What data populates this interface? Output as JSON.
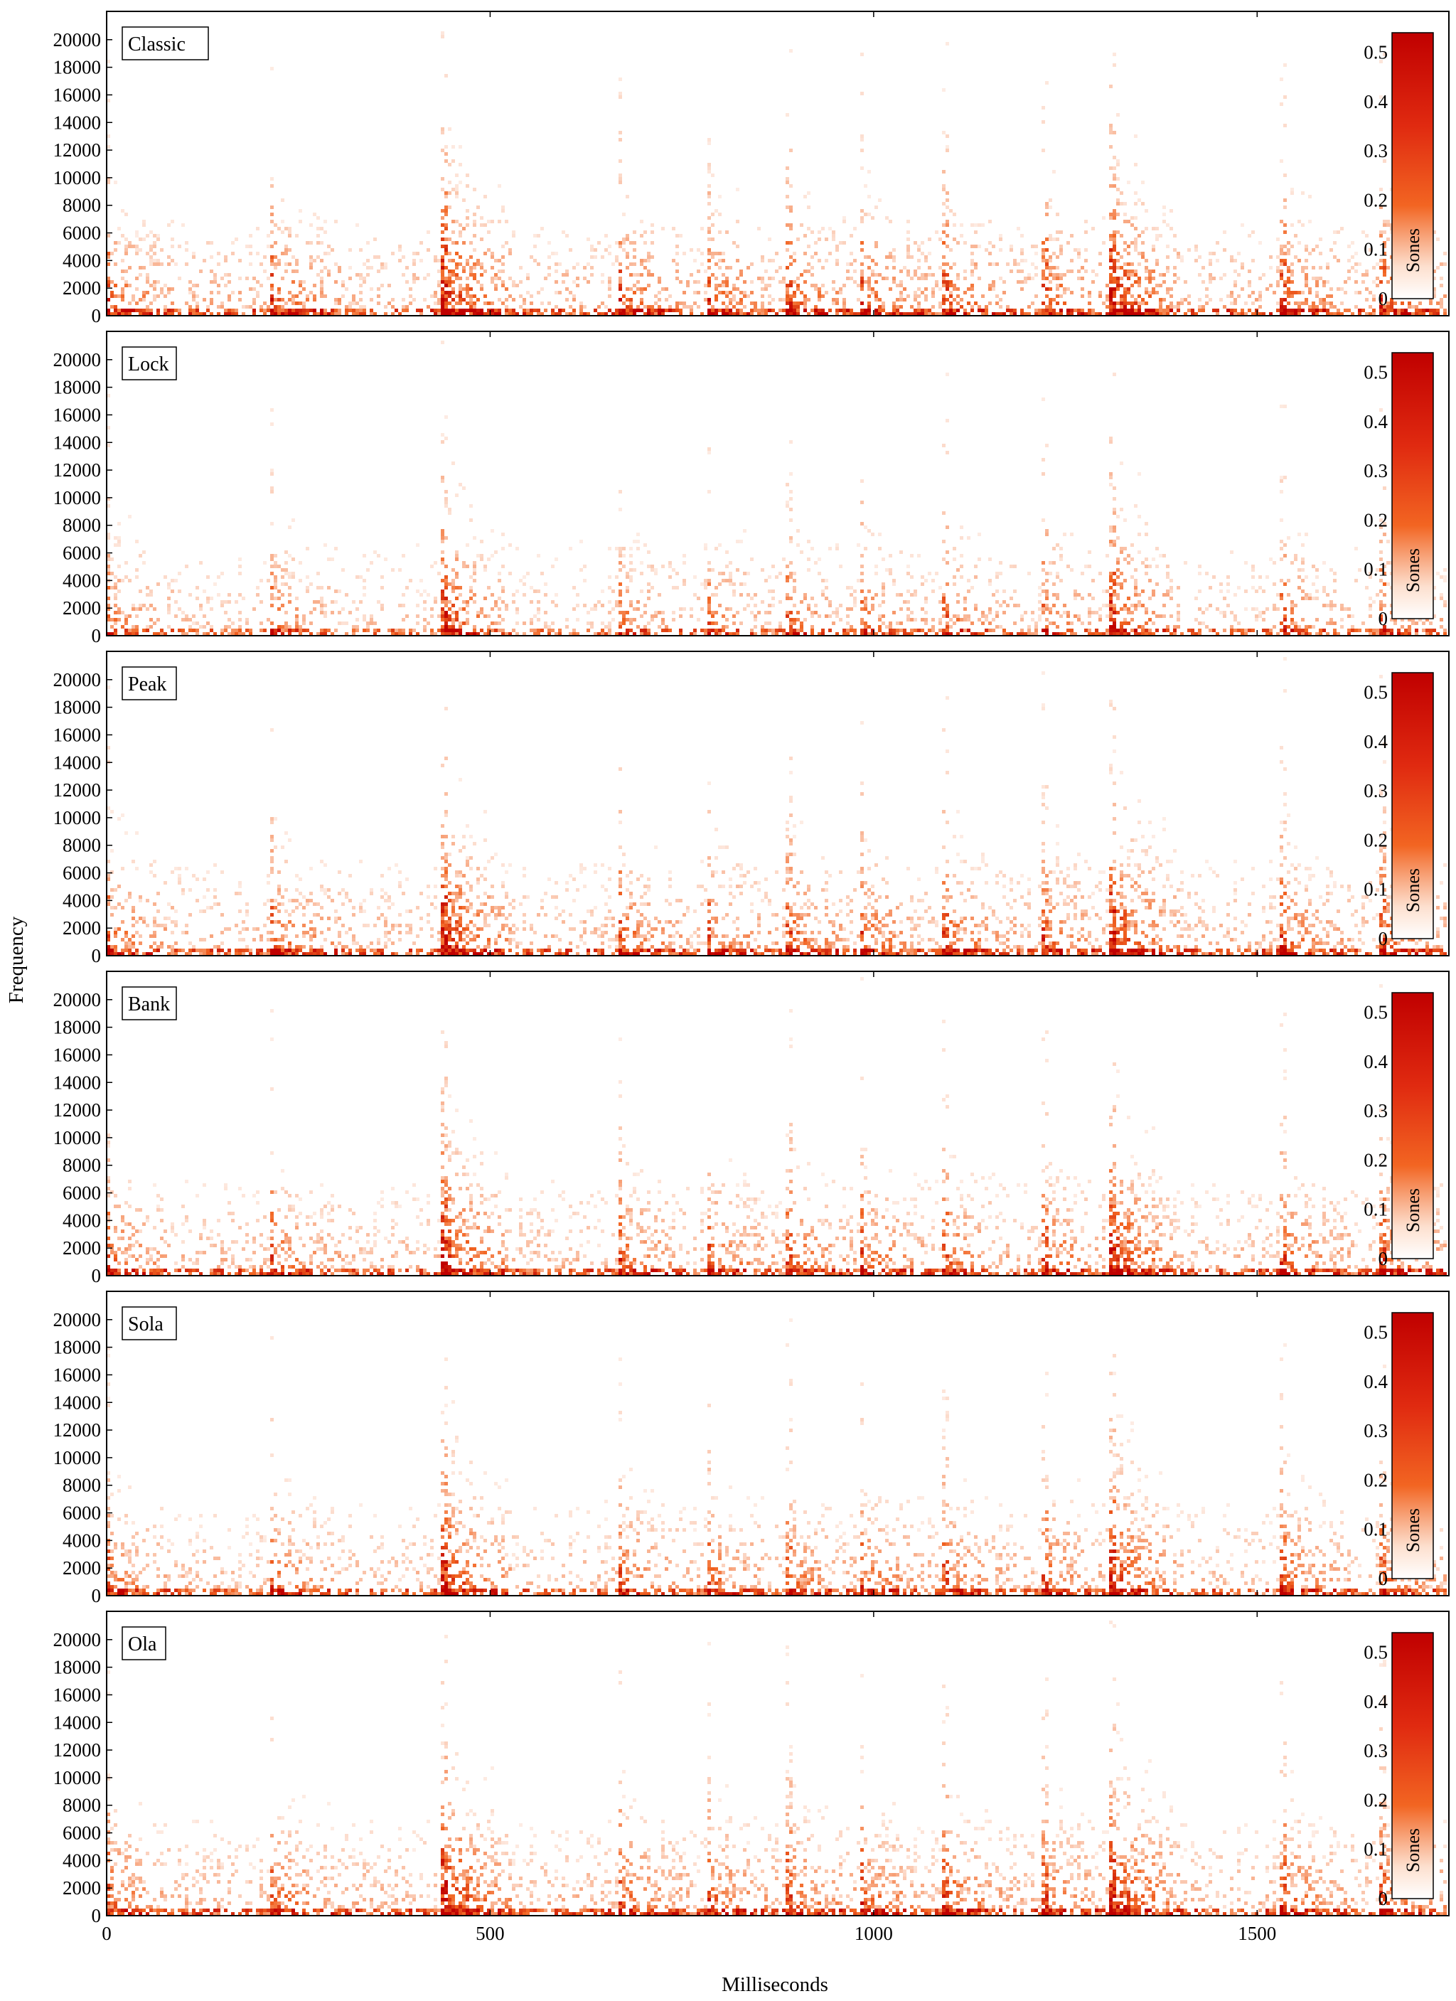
{
  "figure": {
    "ylabel": "Frequency",
    "xlabel": "Milliseconds"
  },
  "colors": {
    "cmap_low": "#ffffff",
    "cmap_mid": "#f26522",
    "cmap_high": "#c00000",
    "frame": "#000000"
  },
  "chart_data": {
    "type": "heatmap",
    "subtype": "spectrogram",
    "xlim": [
      0,
      1750
    ],
    "ylim": [
      0,
      22050
    ],
    "x_ticks": [
      0,
      500,
      1000,
      1500
    ],
    "y_ticks": [
      0,
      2000,
      4000,
      6000,
      8000,
      10000,
      12000,
      14000,
      16000,
      18000,
      20000
    ],
    "colorbar": {
      "label": "Sones",
      "range": [
        0,
        0.54
      ],
      "ticks": [
        0,
        0.1,
        0.2,
        0.3,
        0.4,
        0.5
      ]
    },
    "onsets_ms": [
      0,
      215,
      440,
      670,
      785,
      890,
      985,
      1095,
      1225,
      1310,
      1535,
      1665
    ],
    "strong_onsets_ms": [
      440,
      1310
    ],
    "panels": [
      {
        "label": "Classic",
        "intensity": 1.0
      },
      {
        "label": "Lock",
        "intensity": 0.78
      },
      {
        "label": "Peak",
        "intensity": 0.95
      },
      {
        "label": "Bank",
        "intensity": 0.93
      },
      {
        "label": "Sola",
        "intensity": 0.88
      },
      {
        "label": "Ola",
        "intensity": 0.97
      }
    ]
  }
}
